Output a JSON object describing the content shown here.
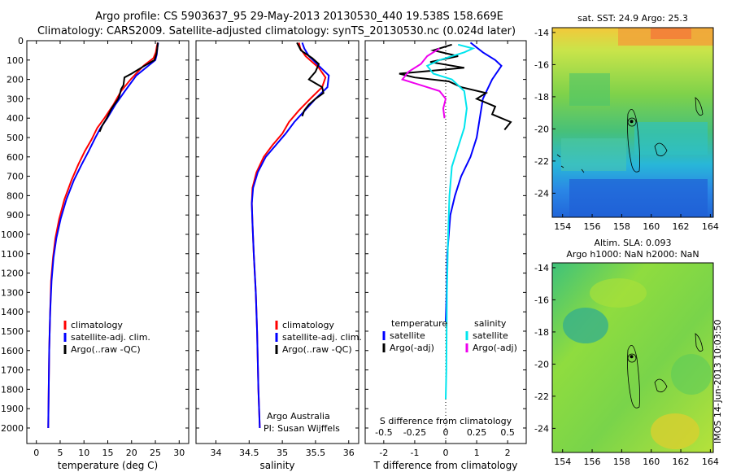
{
  "header": {
    "line1": "Argo profile: CS 5903637_95 29-May-2013 20130530_440 19.538S 158.669E",
    "line2": "Climatology: CARS2009. Satellite-adjusted climatology: synTS_20130530.nc (0.024d later)"
  },
  "colors": {
    "clim": "#ff0000",
    "sat": "#0000ff",
    "argo": "#000000",
    "sal_sat": "#00e5ee",
    "sal_argo": "#ee00ee"
  },
  "depth_axis": {
    "ticks": [
      0,
      100,
      200,
      300,
      400,
      500,
      600,
      700,
      800,
      900,
      1000,
      1100,
      1200,
      1300,
      1400,
      1500,
      1600,
      1700,
      1800,
      1900,
      2000
    ],
    "range": [
      0,
      2080
    ]
  },
  "chart_data": [
    {
      "type": "line",
      "id": "temperature",
      "xlabel": "temperature (deg C)",
      "xlim": [
        -2,
        32
      ],
      "xticks": [
        0,
        5,
        10,
        15,
        20,
        25,
        30
      ],
      "legend": [
        "climatology",
        "satellite-adj. clim.",
        "Argo(..raw -QC)"
      ],
      "series": [
        {
          "name": "climatology",
          "color": "#ff0000",
          "points": [
            [
              25.5,
              10
            ],
            [
              25.3,
              30
            ],
            [
              25.1,
              60
            ],
            [
              24.6,
              90
            ],
            [
              22.5,
              130
            ],
            [
              19.8,
              200
            ],
            [
              17.8,
              260
            ],
            [
              16.2,
              330
            ],
            [
              14.3,
              400
            ],
            [
              12.8,
              450
            ],
            [
              11.6,
              510
            ],
            [
              10.2,
              570
            ],
            [
              8.8,
              640
            ],
            [
              7.4,
              720
            ],
            [
              5.9,
              820
            ],
            [
              4.8,
              920
            ],
            [
              4,
              1020
            ],
            [
              3.5,
              1120
            ],
            [
              3.1,
              1240
            ],
            [
              2.9,
              1400
            ],
            [
              2.7,
              1600
            ],
            [
              2.6,
              1800
            ],
            [
              2.5,
              2000
            ]
          ]
        },
        {
          "name": "satellite-adj. clim.",
          "color": "#0000ff",
          "points": [
            [
              25.6,
              10
            ],
            [
              25.4,
              40
            ],
            [
              25.3,
              70
            ],
            [
              25,
              100
            ],
            [
              23.5,
              130
            ],
            [
              21,
              180
            ],
            [
              18.6,
              260
            ],
            [
              16.6,
              330
            ],
            [
              14.9,
              400
            ],
            [
              13.5,
              450
            ],
            [
              12.4,
              500
            ],
            [
              11,
              570
            ],
            [
              9.5,
              640
            ],
            [
              7.9,
              720
            ],
            [
              6.3,
              820
            ],
            [
              5.1,
              920
            ],
            [
              4.2,
              1020
            ],
            [
              3.6,
              1120
            ],
            [
              3.2,
              1240
            ],
            [
              2.9,
              1400
            ],
            [
              2.7,
              1600
            ],
            [
              2.6,
              1800
            ],
            [
              2.5,
              2000
            ]
          ]
        },
        {
          "name": "Argo(..raw -QC)",
          "color": "#000000",
          "points": [
            [
              25.5,
              10
            ],
            [
              25.4,
              40
            ],
            [
              25.2,
              70
            ],
            [
              24.8,
              100
            ],
            [
              22,
              140
            ],
            [
              20,
              170
            ],
            [
              18.5,
              190
            ],
            [
              18.3,
              230
            ],
            [
              17.8,
              250
            ],
            [
              17.5,
              280
            ],
            [
              17.2,
              300
            ],
            [
              15.8,
              350
            ],
            [
              14.8,
              400
            ],
            [
              13.8,
              440
            ],
            [
              13.3,
              470
            ]
          ]
        }
      ]
    },
    {
      "type": "line",
      "id": "salinity",
      "xlabel": "salinity",
      "xlim": [
        33.7,
        36.15
      ],
      "xticks": [
        34,
        34.5,
        35,
        35.5,
        36
      ],
      "legend": [
        "climatology",
        "satellite-adj. clim.",
        "Argo(..raw -QC)"
      ],
      "annotation": [
        "Argo Australia",
        "PI: Susan Wijffels"
      ],
      "series": [
        {
          "name": "climatology",
          "color": "#ff0000",
          "points": [
            [
              35.25,
              10
            ],
            [
              35.27,
              40
            ],
            [
              35.35,
              80
            ],
            [
              35.55,
              140
            ],
            [
              35.65,
              190
            ],
            [
              35.6,
              240
            ],
            [
              35.42,
              300
            ],
            [
              35.25,
              360
            ],
            [
              35.1,
              420
            ],
            [
              35,
              480
            ],
            [
              34.85,
              540
            ],
            [
              34.72,
              600
            ],
            [
              34.61,
              680
            ],
            [
              34.55,
              760
            ],
            [
              34.54,
              840
            ],
            [
              34.55,
              940
            ],
            [
              34.57,
              1100
            ],
            [
              34.6,
              1300
            ],
            [
              34.62,
              1500
            ],
            [
              34.64,
              1800
            ],
            [
              34.66,
              2000
            ]
          ]
        },
        {
          "name": "satellite-adj. clim.",
          "color": "#0000ff",
          "points": [
            [
              35.3,
              10
            ],
            [
              35.33,
              40
            ],
            [
              35.4,
              80
            ],
            [
              35.58,
              140
            ],
            [
              35.7,
              180
            ],
            [
              35.68,
              240
            ],
            [
              35.5,
              300
            ],
            [
              35.34,
              360
            ],
            [
              35.18,
              420
            ],
            [
              35.05,
              480
            ],
            [
              34.9,
              540
            ],
            [
              34.75,
              600
            ],
            [
              34.63,
              680
            ],
            [
              34.56,
              760
            ],
            [
              34.54,
              840
            ],
            [
              34.55,
              940
            ],
            [
              34.57,
              1100
            ],
            [
              34.6,
              1300
            ],
            [
              34.62,
              1500
            ],
            [
              34.64,
              1800
            ],
            [
              34.66,
              2000
            ]
          ]
        },
        {
          "name": "Argo(..raw -QC)",
          "color": "#000000",
          "points": [
            [
              35.22,
              10
            ],
            [
              35.28,
              50
            ],
            [
              35.45,
              90
            ],
            [
              35.55,
              120
            ],
            [
              35.5,
              160
            ],
            [
              35.4,
              200
            ],
            [
              35.6,
              240
            ],
            [
              35.62,
              270
            ],
            [
              35.5,
              300
            ],
            [
              35.4,
              330
            ],
            [
              35.33,
              360
            ],
            [
              35.3,
              390
            ]
          ]
        }
      ]
    },
    {
      "type": "line",
      "id": "differences",
      "xlabel": "T difference from climatology",
      "xlabel_top": "S difference from climatology",
      "t_xlim": [
        -2.6,
        2.6
      ],
      "t_xticks": [
        -2,
        -1,
        0,
        1,
        2
      ],
      "s_xticks": [
        -0.5,
        -0.25,
        0,
        0.25,
        0.5
      ],
      "s_tick_labels": [
        "-0.5",
        "-0.25",
        "0",
        "0.25",
        "0.5"
      ],
      "legend_temperature": {
        "title": "temperature",
        "items": [
          "satellite",
          "Argo(-adj)"
        ]
      },
      "legend_salinity": {
        "title": "salinity",
        "items": [
          "satellite",
          "Argo(-adj)"
        ]
      },
      "series": [
        {
          "name": "T satellite",
          "color": "#0000ff",
          "points": [
            [
              0.8,
              10
            ],
            [
              1.2,
              60
            ],
            [
              1.6,
              100
            ],
            [
              1.8,
              130
            ],
            [
              1.5,
              200
            ],
            [
              1.2,
              300
            ],
            [
              1.1,
              400
            ],
            [
              1,
              500
            ],
            [
              0.8,
              600
            ],
            [
              0.5,
              700
            ],
            [
              0.3,
              800
            ],
            [
              0.15,
              900
            ],
            [
              0.1,
              1000
            ],
            [
              0.05,
              1100
            ],
            [
              0.03,
              1300
            ],
            [
              0,
              1450
            ]
          ]
        },
        {
          "name": "T Argo(-adj)",
          "color": "#000000",
          "points": [
            [
              0.2,
              20
            ],
            [
              -0.4,
              50
            ],
            [
              0.4,
              80
            ],
            [
              -0.5,
              110
            ],
            [
              0.6,
              140
            ],
            [
              -1.5,
              170
            ],
            [
              -1,
              190
            ],
            [
              0.1,
              210
            ],
            [
              0.5,
              240
            ],
            [
              1.3,
              270
            ],
            [
              1,
              300
            ],
            [
              1.6,
              340
            ],
            [
              1.5,
              380
            ],
            [
              2.1,
              420
            ],
            [
              1.9,
              460
            ]
          ]
        },
        {
          "name": "S satellite",
          "color": "#00e5ee",
          "points": [
            [
              0.1,
              20
            ],
            [
              0.22,
              40
            ],
            [
              0.15,
              60
            ],
            [
              -0.05,
              100
            ],
            [
              -0.15,
              130
            ],
            [
              -0.1,
              170
            ],
            [
              0.05,
              200
            ],
            [
              0.15,
              260
            ],
            [
              0.17,
              350
            ],
            [
              0.15,
              450
            ],
            [
              0.1,
              550
            ],
            [
              0.05,
              650
            ],
            [
              0.03,
              800
            ],
            [
              0.02,
              1000
            ],
            [
              0.01,
              1300
            ],
            [
              0.005,
              1700
            ],
            [
              0,
              1850
            ]
          ]
        },
        {
          "name": "S Argo(-adj)",
          "color": "#ee00ee",
          "points": [
            [
              -0.05,
              40
            ],
            [
              -0.15,
              80
            ],
            [
              -0.2,
              120
            ],
            [
              -0.3,
              160
            ],
            [
              -0.35,
              200
            ],
            [
              -0.2,
              230
            ],
            [
              -0.05,
              260
            ],
            [
              0,
              300
            ],
            [
              -0.02,
              350
            ],
            [
              -0.01,
              400
            ]
          ]
        }
      ]
    },
    {
      "type": "heatmap",
      "id": "sst-map",
      "title": "sat. SST: 24.9 Argo: 25.3",
      "xlim": [
        153.3,
        164.2
      ],
      "ylim": [
        -25.5,
        -13.7
      ],
      "xticks": [
        154,
        156,
        158,
        160,
        162,
        164
      ],
      "yticks": [
        -14,
        -16,
        -18,
        -20,
        -22,
        -24
      ],
      "argo_position": [
        158.669,
        -19.538
      ]
    },
    {
      "type": "heatmap",
      "id": "sla-map",
      "title": "Altim. SLA: 0.093",
      "subtitle": "Argo h1000: NaN h2000: NaN",
      "xlim": [
        153.3,
        164.2
      ],
      "ylim": [
        -25.5,
        -13.7
      ],
      "xticks": [
        154,
        156,
        158,
        160,
        162,
        164
      ],
      "yticks": [
        -14,
        -16,
        -18,
        -20,
        -22,
        -24
      ],
      "argo_position": [
        158.669,
        -19.538
      ]
    }
  ],
  "stamp": "IMOS 14-Jun-2013 10:03:50"
}
